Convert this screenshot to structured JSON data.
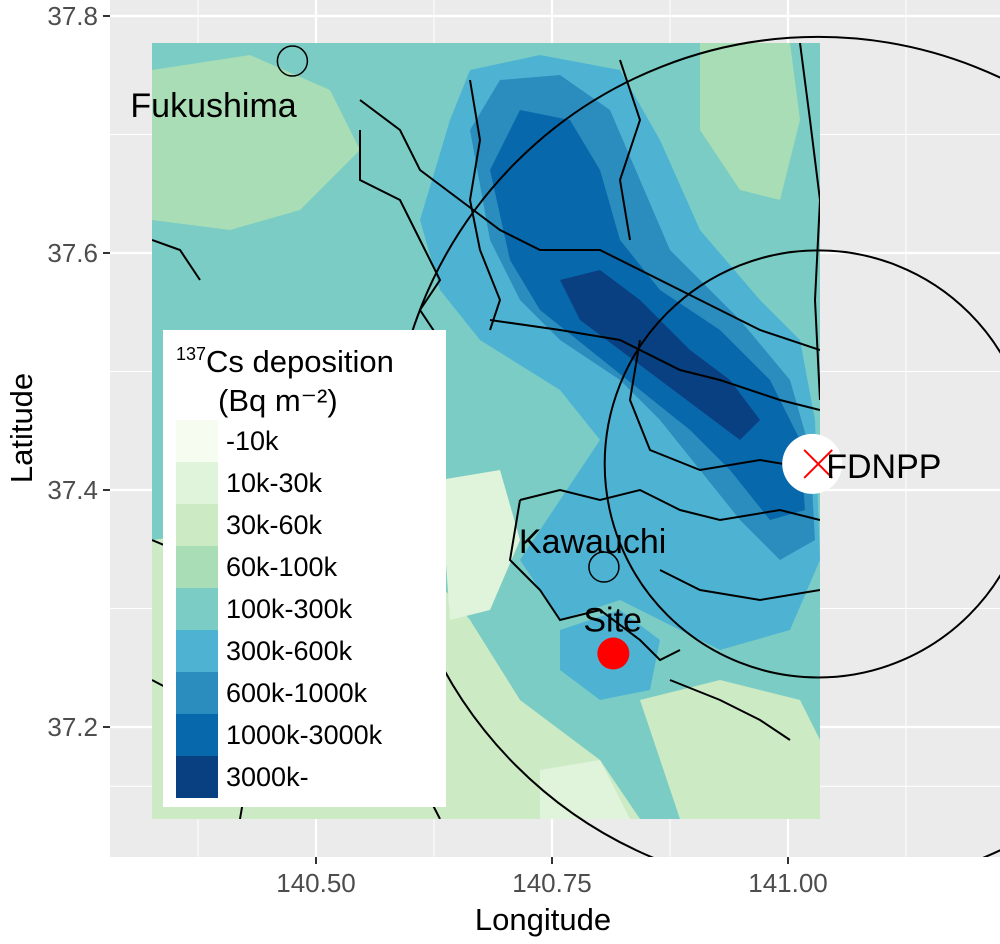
{
  "axes": {
    "x_title": "Longitude",
    "y_title": "Latitude",
    "x_ticks": [
      "140.50",
      "140.75",
      "141.00"
    ],
    "y_ticks": [
      "37.8",
      "37.6",
      "37.4",
      "37.2"
    ],
    "x_range": [
      140.33,
      141.18
    ],
    "y_range": [
      37.1,
      37.8
    ]
  },
  "places": {
    "fukushima": {
      "label": "Fukushima",
      "lon": 140.475,
      "lat": 37.762
    },
    "kawauchi": {
      "label": "Kawauchi",
      "lon": 140.805,
      "lat": 37.335
    },
    "site": {
      "label": "Site",
      "lon": 140.815,
      "lat": 37.262
    },
    "fdnpp": {
      "label": "FDNPP",
      "lon": 141.032,
      "lat": 37.422
    }
  },
  "rings_km": [
    20,
    40
  ],
  "legend": {
    "title_sup": "137",
    "title_line1": "Cs deposition",
    "title_line2": "(Bq m⁻²)",
    "position": "bottom-left",
    "items": [
      {
        "label": "-10k",
        "color": "#f7fcf0"
      },
      {
        "label": "10k-30k",
        "color": "#e0f3db"
      },
      {
        "label": "30k-60k",
        "color": "#ccebc5"
      },
      {
        "label": "60k-100k",
        "color": "#a8ddb5"
      },
      {
        "label": "100k-300k",
        "color": "#7bccc4"
      },
      {
        "label": "300k-600k",
        "color": "#4eb3d3"
      },
      {
        "label": "600k-1000k",
        "color": "#2b8cbe"
      },
      {
        "label": "1000k-3000k",
        "color": "#0868ac"
      },
      {
        "label": "3000k-",
        "color": "#084081"
      }
    ]
  },
  "colors": {
    "panel_bg": "#ebebeb",
    "gridline": "#ffffff",
    "site_marker": "#ff0000",
    "fdnpp_marker": "#ff0000"
  }
}
